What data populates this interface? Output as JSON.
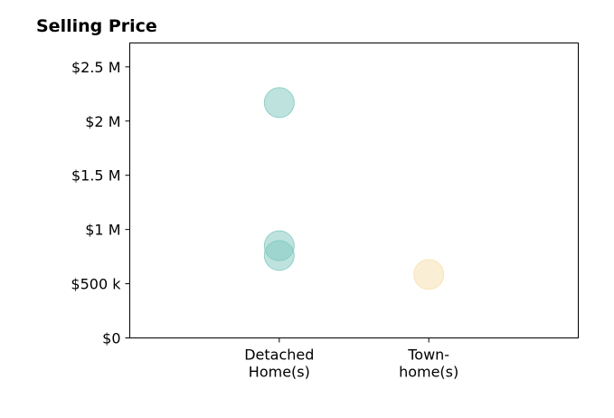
{
  "chart_data": {
    "type": "scatter",
    "title": "Selling Price",
    "xlabel": "",
    "ylabel": "",
    "categories": [
      {
        "label_lines": [
          "Detached",
          "Home(s)"
        ]
      },
      {
        "label_lines": [
          "Town-",
          "home(s)"
        ]
      }
    ],
    "y_ticks": [
      {
        "value": 0,
        "label": "$0"
      },
      {
        "value": 500000,
        "label": "$500 k"
      },
      {
        "value": 1000000,
        "label": "$1 M"
      },
      {
        "value": 1500000,
        "label": "$1.5 M"
      },
      {
        "value": 2000000,
        "label": "$2 M"
      },
      {
        "value": 2500000,
        "label": "$2.5 M"
      }
    ],
    "ylim": [
      0,
      2720000
    ],
    "xlim": [
      -1,
      2
    ],
    "grid": false,
    "legend": "none",
    "series": [
      {
        "color": "#7ec8bf",
        "points": [
          {
            "x": 0,
            "y": 2170000
          },
          {
            "x": 0,
            "y": 850000
          },
          {
            "x": 0,
            "y": 760000
          }
        ]
      },
      {
        "color": "#f6dfaa",
        "points": [
          {
            "x": 1,
            "y": 585000
          }
        ]
      }
    ]
  }
}
